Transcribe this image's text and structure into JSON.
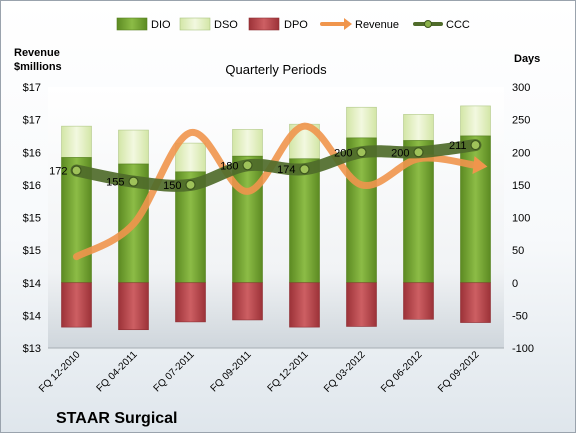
{
  "chart_data": {
    "type": "bar",
    "title": "Quarterly Periods",
    "company": "STAAR Surgical",
    "left_axis_label": [
      "Revenue",
      "$millions"
    ],
    "right_axis_label": "Days",
    "left_ticks": [
      "$17",
      "$17",
      "$16",
      "$16",
      "$15",
      "$15",
      "$14",
      "$14",
      "$13"
    ],
    "right_ticks": [
      "300",
      "250",
      "200",
      "150",
      "100",
      "50",
      "0",
      "-50",
      "-100"
    ],
    "ylim_days": [
      -100,
      300
    ],
    "categories": [
      "FQ 12-2010",
      "FQ 04-2011",
      "FQ 07-2011",
      "FQ 09-2011",
      "FQ 12-2011",
      "FQ 03-2012",
      "FQ 06-2012",
      "FQ 09-2012"
    ],
    "legend": [
      "DIO",
      "DSO",
      "DPO",
      "Revenue",
      "CCC"
    ],
    "legend_position": "top",
    "grid": false,
    "series": [
      {
        "name": "DIO",
        "color": "#76a534",
        "values": [
          192,
          182,
          170,
          194,
          190,
          222,
          218,
          225
        ]
      },
      {
        "name": "DSO",
        "color": "#e4f0c6",
        "values": [
          48,
          52,
          44,
          41,
          53,
          47,
          40,
          46
        ]
      },
      {
        "name": "DPO",
        "color": "#b8474c",
        "values": [
          -68,
          -72,
          -60,
          -57,
          -68,
          -67,
          -56,
          -61
        ]
      },
      {
        "name": "Revenue",
        "color": "#f0954c",
        "values": [
          14.4,
          14.9,
          16.3,
          15.4,
          16.4,
          15.5,
          15.9,
          15.8
        ]
      },
      {
        "name": "CCC",
        "color": "#4f6b2a",
        "values": [
          172,
          155,
          150,
          180,
          174,
          200,
          200,
          211
        ]
      }
    ],
    "ccc_labels": [
      "172",
      "155",
      "150",
      "180",
      "174",
      "200",
      "200",
      "211"
    ]
  }
}
